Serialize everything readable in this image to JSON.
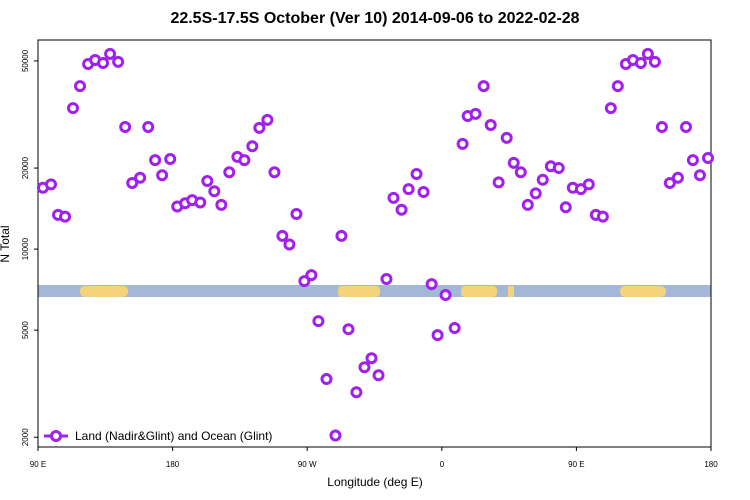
{
  "chart_data": {
    "type": "scatter",
    "title": "22.5S-17.5S October (Ver 10)   2014-09-06 to 2022-02-28",
    "x_label": "Longitude (deg E)",
    "y_label": "N Total",
    "yscale": "log",
    "xlim": [
      90,
      540
    ],
    "ylim": [
      1840,
      59800
    ],
    "xticks": [
      {
        "value": 90,
        "label": "90 E"
      },
      {
        "value": 180,
        "label": "180"
      },
      {
        "value": 270,
        "label": "90 W"
      },
      {
        "value": 360,
        "label": "0"
      },
      {
        "value": 450,
        "label": "90 E"
      },
      {
        "value": 540,
        "label": "180"
      }
    ],
    "yticks": [
      2000,
      5000,
      10000,
      20000,
      50000
    ],
    "legend_position": "bottom-left",
    "series": [
      {
        "name": "Land (Nadir&Glint) and Ocean (Glint)",
        "color": "#a020f0",
        "x": [
          93.3,
          98.7,
          103.4,
          108.1,
          113.4,
          118.1,
          123.5,
          128.2,
          133.5,
          138.2,
          143.6,
          148.3,
          153.0,
          158.3,
          163.7,
          168.3,
          173.0,
          178.4,
          183.1,
          188.4,
          193.1,
          198.5,
          203.2,
          207.9,
          212.6,
          217.9,
          223.3,
          228.0,
          233.3,
          238.0,
          243.4,
          248.1,
          253.4,
          258.1,
          262.8,
          268.1,
          272.8,
          277.5,
          282.9,
          288.9,
          292.9,
          297.6,
          302.9,
          308.3,
          313.0,
          317.7,
          323.0,
          327.7,
          333.1,
          337.8,
          343.1,
          347.8,
          353.2,
          357.2,
          362.5,
          368.6,
          373.9,
          377.3,
          382.6,
          388.0,
          392.7,
          398.0,
          403.4,
          408.1,
          412.8,
          417.5,
          422.8,
          427.5,
          432.9,
          438.2,
          442.9,
          447.6,
          453.0,
          458.3,
          463.0,
          467.7,
          473.0,
          477.7,
          483.1,
          487.8,
          493.1,
          497.8,
          502.5,
          507.2,
          512.5,
          517.9,
          523.3,
          527.9,
          532.6,
          538.0
        ],
        "values": [
          16900,
          17400,
          13400,
          13200,
          33400,
          40300,
          48700,
          50400,
          49100,
          53100,
          49600,
          28400,
          17600,
          18400,
          28400,
          21400,
          18800,
          21600,
          14400,
          14800,
          15200,
          14900,
          17900,
          16400,
          14600,
          19300,
          22000,
          21400,
          24100,
          28200,
          30200,
          19300,
          11200,
          10400,
          13500,
          7600,
          8000,
          5400,
          3290,
          2030,
          11200,
          5040,
          2940,
          3640,
          3930,
          3400,
          7740,
          15500,
          14000,
          16700,
          19000,
          16300,
          7410,
          4790,
          6750,
          5090,
          24600,
          31200,
          31800,
          40300,
          28900,
          17700,
          25900,
          20900,
          19300,
          14600,
          16100,
          18100,
          20300,
          20000,
          14300,
          16900,
          16700,
          17400,
          13400,
          13200,
          33400,
          40300,
          48700,
          50400,
          49100,
          53100,
          49600,
          28400,
          17600,
          18400,
          28400,
          21400,
          18800,
          21800
        ]
      }
    ]
  }
}
